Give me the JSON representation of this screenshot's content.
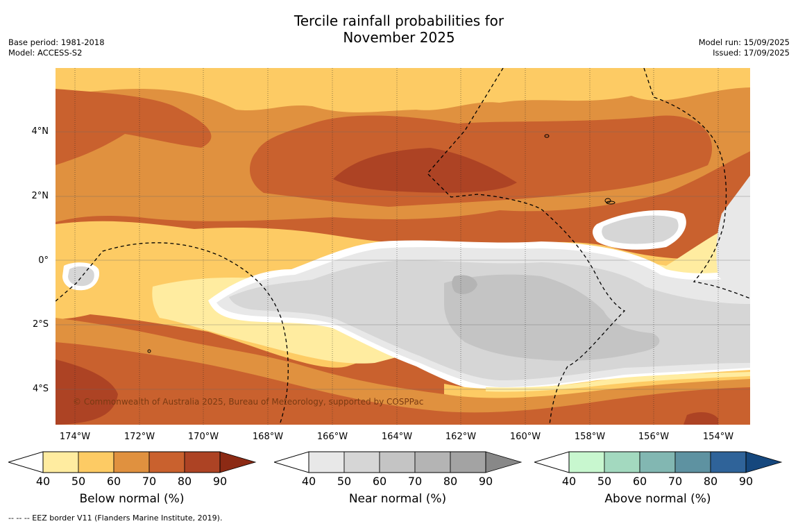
{
  "header": {
    "title_line1": "Tercile rainfall probabilities for",
    "title_line2": "November 2025",
    "base_period": "Base period: 1981-2018",
    "model": "Model: ACCESS-S2",
    "model_run": "Model run: 15/09/2025",
    "issued": "Issued: 17/09/2025"
  },
  "map": {
    "copyright": "© Commonwealth of Australia 2025, Bureau of Meteorology, supported by COSPPac",
    "lat_labels": [
      "4°N",
      "2°N",
      "0°",
      "2°S",
      "4°S"
    ],
    "lon_labels": [
      "174°W",
      "172°W",
      "170°W",
      "168°W",
      "166°W",
      "164°W",
      "162°W",
      "160°W",
      "158°W",
      "156°W",
      "154°W"
    ]
  },
  "colorbars": [
    {
      "label": "Below normal (%)",
      "ticks": [
        "40",
        "50",
        "60",
        "70",
        "80",
        "90"
      ],
      "colors": [
        "#ffeca0",
        "#fdcb64",
        "#e0913f",
        "#c9612e",
        "#ad4324",
        "#8c2a14"
      ]
    },
    {
      "label": "Near normal (%)",
      "ticks": [
        "40",
        "50",
        "60",
        "70",
        "80",
        "90"
      ],
      "colors": [
        "#e8e8e8",
        "#d6d6d6",
        "#c4c4c4",
        "#b4b4b4",
        "#a3a3a3",
        "#888888"
      ]
    },
    {
      "label": "Above normal (%)",
      "ticks": [
        "40",
        "50",
        "60",
        "70",
        "80",
        "90"
      ],
      "colors": [
        "#c8f7cf",
        "#a3d9bf",
        "#82b7b2",
        "#5e92a1",
        "#2f6399",
        "#15477d"
      ]
    }
  ],
  "legend": {
    "eez_line": "--  --  -- EEZ border V11 (Flanders Marine Institute, 2019)."
  }
}
